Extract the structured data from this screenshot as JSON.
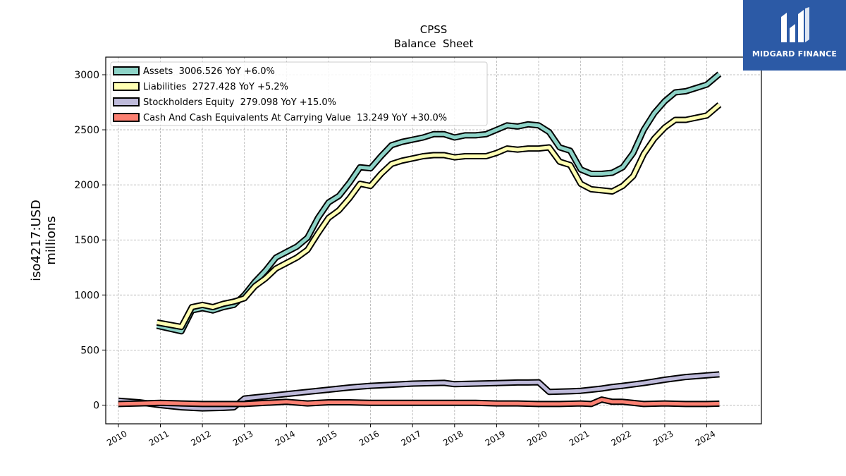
{
  "logo": {
    "text": "MIDGARD FINANCE",
    "background": "#2c5aa6"
  },
  "chart_data": {
    "type": "line",
    "title": "CPSS",
    "subtitle": "Balance  Sheet",
    "ylabel_line1": "iso4217:USD",
    "ylabel_line2": "millions",
    "xlim": [
      2009.7,
      2025.3
    ],
    "ylim": [
      -170,
      3160
    ],
    "grid": true,
    "legend_position": "top-left",
    "x_ticks": [
      "2010",
      "2011",
      "2012",
      "2013",
      "2014",
      "2015",
      "2016",
      "2017",
      "2018",
      "2019",
      "2020",
      "2021",
      "2022",
      "2023",
      "2024"
    ],
    "y_ticks": [
      0,
      500,
      1000,
      1500,
      2000,
      2500,
      3000
    ],
    "series": [
      {
        "name": "Assets  3006.526 YoY +6.0%",
        "color": "#8dd3c7",
        "x": [
          2010.92,
          2011.5,
          2011.75,
          2012.0,
          2012.25,
          2012.5,
          2012.75,
          2013.0,
          2013.25,
          2013.5,
          2013.75,
          2014.0,
          2014.25,
          2014.5,
          2014.75,
          2015.0,
          2015.25,
          2015.5,
          2015.75,
          2016.0,
          2016.25,
          2016.5,
          2016.75,
          2017.0,
          2017.25,
          2017.5,
          2017.75,
          2018.0,
          2018.25,
          2018.5,
          2018.75,
          2019.0,
          2019.25,
          2019.5,
          2019.75,
          2020.0,
          2020.25,
          2020.5,
          2020.75,
          2021.0,
          2021.25,
          2021.5,
          2021.75,
          2022.0,
          2022.25,
          2022.5,
          2022.75,
          2023.0,
          2023.25,
          2023.5,
          2023.75,
          2024.0,
          2024.3
        ],
        "values": [
          720,
          670,
          860,
          880,
          860,
          890,
          910,
          1000,
          1120,
          1220,
          1340,
          1390,
          1440,
          1520,
          1700,
          1840,
          1900,
          2020,
          2160,
          2150,
          2260,
          2360,
          2390,
          2410,
          2430,
          2460,
          2460,
          2430,
          2450,
          2450,
          2460,
          2500,
          2540,
          2530,
          2550,
          2540,
          2480,
          2340,
          2310,
          2140,
          2100,
          2100,
          2110,
          2160,
          2290,
          2500,
          2650,
          2760,
          2840,
          2850,
          2880,
          2910,
          3006
        ]
      },
      {
        "name": "Liabilities  2727.428 YoY +5.2%",
        "color": "#ffffb3",
        "x": [
          2010.92,
          2011.5,
          2011.75,
          2012.0,
          2012.25,
          2012.5,
          2012.75,
          2013.0,
          2013.25,
          2013.5,
          2013.75,
          2014.0,
          2014.25,
          2014.5,
          2014.75,
          2015.0,
          2015.25,
          2015.5,
          2015.75,
          2016.0,
          2016.25,
          2016.5,
          2016.75,
          2017.0,
          2017.25,
          2017.5,
          2017.75,
          2018.0,
          2018.25,
          2018.5,
          2018.75,
          2019.0,
          2019.25,
          2019.5,
          2019.75,
          2020.0,
          2020.25,
          2020.5,
          2020.75,
          2021.0,
          2021.25,
          2021.5,
          2021.75,
          2022.0,
          2022.25,
          2022.5,
          2022.75,
          2023.0,
          2023.25,
          2023.5,
          2023.75,
          2024.0,
          2024.3
        ],
        "values": [
          750,
          710,
          890,
          910,
          890,
          920,
          940,
          970,
          1080,
          1150,
          1240,
          1290,
          1340,
          1410,
          1560,
          1700,
          1770,
          1880,
          2010,
          1990,
          2100,
          2190,
          2220,
          2240,
          2260,
          2270,
          2270,
          2250,
          2260,
          2260,
          2260,
          2290,
          2330,
          2320,
          2330,
          2330,
          2340,
          2210,
          2180,
          2010,
          1960,
          1950,
          1940,
          1990,
          2080,
          2280,
          2420,
          2520,
          2590,
          2590,
          2610,
          2630,
          2727
        ]
      },
      {
        "name": "Stockholders Equity  279.098 YoY +15.0%",
        "color": "#bebada",
        "x": [
          2010.0,
          2010.5,
          2011.0,
          2011.5,
          2012.0,
          2012.5,
          2012.75,
          2013.0,
          2013.5,
          2014.0,
          2014.5,
          2015.0,
          2015.5,
          2016.0,
          2016.5,
          2017.0,
          2017.5,
          2017.75,
          2018.0,
          2018.5,
          2019.0,
          2019.5,
          2019.75,
          2020.0,
          2020.25,
          2020.75,
          2021.0,
          2021.25,
          2021.5,
          2021.75,
          2022.0,
          2022.5,
          2022.75,
          2023.0,
          2023.5,
          2024.0,
          2024.3
        ],
        "values": [
          40,
          25,
          0,
          -20,
          -30,
          -25,
          -20,
          60,
          80,
          100,
          120,
          140,
          160,
          175,
          185,
          195,
          200,
          202,
          190,
          195,
          200,
          205,
          205,
          207,
          120,
          125,
          130,
          140,
          150,
          165,
          175,
          200,
          215,
          230,
          255,
          270,
          279
        ]
      },
      {
        "name": "Cash And Cash Equivalents At Carrying Value  13.249 YoY +30.0%",
        "color": "#fb8072",
        "x": [
          2010.0,
          2010.5,
          2011.0,
          2011.5,
          2012.0,
          2012.5,
          2013.0,
          2013.5,
          2014.0,
          2014.5,
          2015.0,
          2015.5,
          2016.0,
          2016.5,
          2017.0,
          2017.5,
          2018.0,
          2018.5,
          2019.0,
          2019.5,
          2020.0,
          2020.5,
          2021.0,
          2021.25,
          2021.5,
          2021.75,
          2022.0,
          2022.5,
          2023.0,
          2023.5,
          2024.0,
          2024.3
        ],
        "values": [
          10,
          15,
          20,
          15,
          10,
          10,
          10,
          20,
          30,
          15,
          25,
          25,
          20,
          20,
          20,
          20,
          20,
          20,
          15,
          15,
          10,
          10,
          15,
          10,
          50,
          30,
          30,
          10,
          15,
          10,
          10,
          13
        ]
      }
    ]
  }
}
